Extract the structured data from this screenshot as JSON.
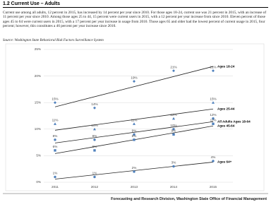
{
  "header": {
    "title": "1.2 Current Use – Adults"
  },
  "body": {
    "paragraph": "Current use among all adults, 12 percent in 2015, has increased by 14 percent per year since 2010. For those ages 18-24, current use was 21 percent in 2015, with an increase of 11 percent per year since 2010. Among those ages 25 to 44, 15 percent were current users in 2015, with a 12 percent per year increase from since 2010. Eleven percent of those ages 45 to 64 were current users in 2015, with a 17 percent per year increase in usage from 2010. Those ages 65 and older had the lowest percent of current usage in 2015, four percent; however, this constitutes a 46 percent per year increase since 2010.",
    "source": "Source: Washington State Behavioral Risk Factors Surveillance System"
  },
  "chart_data": {
    "type": "line",
    "categories": [
      "2011",
      "2012",
      "2013",
      "2014",
      "2015"
    ],
    "ylim": [
      0,
      25
    ],
    "yticks": [
      {
        "value": 0,
        "label": "0%"
      },
      {
        "value": 5,
        "label": "5%"
      },
      {
        "value": 10,
        "label": "10%"
      },
      {
        "value": 15,
        "label": "15%"
      },
      {
        "value": 20,
        "label": "20%"
      },
      {
        "value": 25,
        "label": "25%"
      }
    ],
    "grid": true,
    "series": [
      {
        "name": "Ages 18-24",
        "color": "#4f81bd",
        "marker": "diamond",
        "values": [
          15,
          14,
          19,
          21,
          21
        ],
        "value_labels": [
          "15%",
          "14%",
          "19%",
          "21%",
          "21%"
        ]
      },
      {
        "name": "Ages 25-44",
        "color": "#4f81bd",
        "marker": "triangle",
        "values": [
          11,
          10,
          11,
          12,
          15
        ],
        "value_labels": [
          "11%",
          "10%",
          "11%",
          "12%",
          "15%"
        ]
      },
      {
        "name": "All Adults Ages 18-64",
        "color": "#4f81bd",
        "marker": "circle",
        "values": [
          8,
          8,
          9,
          10,
          12
        ],
        "value_labels": [
          "8%",
          "8%",
          "9%",
          "10%",
          "12%"
        ]
      },
      {
        "name": "Ages 45-64",
        "color": "#4f81bd",
        "marker": "square",
        "values": [
          6,
          6,
          8,
          9,
          11
        ],
        "value_labels": [
          "6%",
          "6%",
          "8%",
          "9%",
          "11%"
        ]
      },
      {
        "name": "Ages 64+",
        "color": "#4f81bd",
        "marker": "circle",
        "values": [
          1,
          1,
          2,
          3,
          4
        ],
        "value_labels": [
          "1%",
          "1%",
          "2%",
          "3%",
          "4%"
        ]
      }
    ]
  },
  "footer": {
    "text": "Forecasting and Research Division, Washington State Office of Financial Management"
  }
}
